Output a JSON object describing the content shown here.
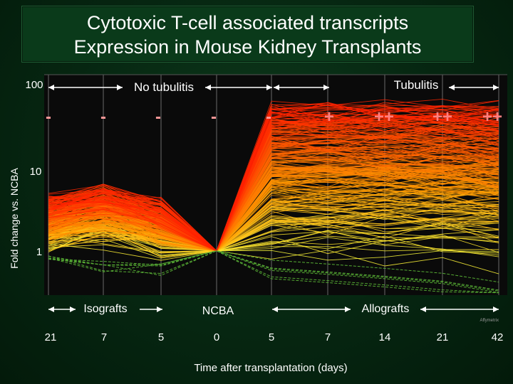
{
  "title_line1": "Cytotoxic T-cell associated transcripts",
  "title_line2": "Expression in Mouse Kidney Transplants",
  "chart_data": {
    "type": "line",
    "title": "Cytotoxic T-cell associated transcripts Expression in Mouse Kidney Transplants",
    "xlabel": "Time after transplantation (days)",
    "ylabel": "Fold change vs. NCBA",
    "y_scale": "log",
    "ylim": [
      0.3,
      120
    ],
    "y_ticks": [
      "100",
      "10",
      "1"
    ],
    "x_ticks": [
      "21",
      "7",
      "5",
      "0",
      "5",
      "7",
      "14",
      "21",
      "42"
    ],
    "tubulitis_marks": [
      "-",
      "-",
      "-",
      "-",
      "-",
      "+",
      "++",
      "++",
      "++"
    ],
    "groups": {
      "left": "Isografts",
      "center": "NCBA",
      "right": "Allografts"
    },
    "top_labels": {
      "left": "No tubulitis",
      "right": "Tubulitis"
    },
    "series_summary": "Hundreds of transcripts; lines normalized to 1 at NCBA (x=0), low fold change in isografts, high fold change in allografts",
    "grid": "vertical lines at each time point",
    "legend": "none"
  },
  "watermark": "Affymetrix",
  "colors": {
    "hot": "#ff2a00",
    "warm": "#ff9900",
    "cool": "#ffff33",
    "green": "#55aa33"
  }
}
